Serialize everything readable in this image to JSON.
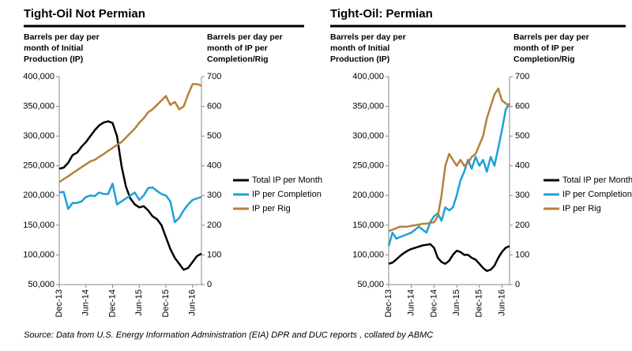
{
  "chart_data": [
    {
      "type": "line",
      "title": "Tight-Oil Not Permian",
      "y_label": [
        "Barrels per day per",
        "month of Initial",
        "Production (IP)"
      ],
      "y2_label": [
        "Barrels per day per",
        "month of IP per",
        "Completion/Rig"
      ],
      "categories": [
        "Dec-13",
        null,
        null,
        null,
        null,
        null,
        "Jun-14",
        null,
        null,
        null,
        null,
        null,
        "Dec-14",
        null,
        null,
        null,
        null,
        null,
        "Jun-15",
        null,
        null,
        null,
        null,
        null,
        "Dec-15",
        null,
        null,
        null,
        null,
        null,
        "Jun-16",
        null,
        null
      ],
      "ylim": [
        50000,
        400000
      ],
      "yticks": [
        {
          "value": 50000,
          "label": "50,000"
        },
        {
          "value": 100000,
          "label": "100,000"
        },
        {
          "value": 150000,
          "label": "150,000"
        },
        {
          "value": 200000,
          "label": "200,000"
        },
        {
          "value": 250000,
          "label": "250,000"
        },
        {
          "value": 300000,
          "label": "300,000"
        },
        {
          "value": 350000,
          "label": "350,000"
        },
        {
          "value": 400000,
          "label": "400,000"
        }
      ],
      "y2lim": [
        0,
        700
      ],
      "y2ticks": [
        0,
        100,
        200,
        300,
        400,
        500,
        600,
        700
      ],
      "series": [
        {
          "name": "Total IP per Month",
          "color": "#000000",
          "values": [
            245000,
            247000,
            255000,
            268000,
            272000,
            282000,
            290000,
            300000,
            310000,
            318000,
            323000,
            325000,
            322000,
            300000,
            250000,
            215000,
            195000,
            185000,
            180000,
            182000,
            175000,
            165000,
            160000,
            150000,
            130000,
            110000,
            95000,
            85000,
            75000,
            78000,
            88000,
            98000,
            102000
          ]
        },
        {
          "name": "IP per Completion",
          "color": "#1fa0d8",
          "axis": "y2",
          "values": [
            310,
            312,
            255,
            275,
            275,
            280,
            295,
            300,
            298,
            310,
            305,
            305,
            340,
            270,
            280,
            290,
            300,
            310,
            285,
            300,
            325,
            327,
            315,
            305,
            300,
            280,
            210,
            225,
            250,
            270,
            285,
            290,
            295
          ]
        },
        {
          "name": "IP per Rig",
          "color": "#b5813a",
          "axis": "y2",
          "values": [
            345,
            355,
            365,
            375,
            385,
            395,
            405,
            415,
            420,
            430,
            440,
            450,
            460,
            470,
            480,
            495,
            510,
            525,
            545,
            560,
            580,
            590,
            605,
            620,
            635,
            605,
            615,
            590,
            600,
            640,
            675,
            675,
            670
          ]
        }
      ]
    },
    {
      "type": "line",
      "title": "Tight-Oil: Permian",
      "y_label": [
        "Barrels per day per",
        "month of Initial",
        "Production (IP)"
      ],
      "y2_label": [
        "Barrels per day per",
        "month of IP per",
        "Completion/Rig"
      ],
      "categories": [
        "Dec-13",
        null,
        null,
        null,
        null,
        null,
        "Jun-14",
        null,
        null,
        null,
        null,
        null,
        "Dec-14",
        null,
        null,
        null,
        null,
        null,
        "Jun-15",
        null,
        null,
        null,
        null,
        null,
        "Dec-15",
        null,
        null,
        null,
        null,
        null,
        "Jun-16",
        null,
        null
      ],
      "ylim": [
        50000,
        400000
      ],
      "yticks": [
        {
          "value": 50000,
          "label": "50,000"
        },
        {
          "value": 100000,
          "label": "100,000"
        },
        {
          "value": 150000,
          "label": "150,000"
        },
        {
          "value": 200000,
          "label": "200,000"
        },
        {
          "value": 250000,
          "label": "250,000"
        },
        {
          "value": 300000,
          "label": "300,000"
        },
        {
          "value": 350000,
          "label": "350,000"
        },
        {
          "value": 400000,
          "label": "400,000"
        }
      ],
      "y2lim": [
        0,
        700
      ],
      "y2ticks": [
        0,
        100,
        200,
        300,
        400,
        500,
        600,
        700
      ],
      "series": [
        {
          "name": "Total IP per Month",
          "color": "#000000",
          "values": [
            85000,
            87000,
            92000,
            98000,
            103000,
            107000,
            110000,
            112000,
            114000,
            116000,
            117000,
            118000,
            112000,
            95000,
            88000,
            85000,
            90000,
            100000,
            107000,
            105000,
            100000,
            100000,
            95000,
            92000,
            85000,
            78000,
            73000,
            75000,
            82000,
            95000,
            105000,
            112000,
            115000
          ]
        },
        {
          "name": "IP per Completion",
          "color": "#1fa0d8",
          "axis": "y2",
          "values": [
            130,
            175,
            155,
            160,
            165,
            170,
            175,
            185,
            195,
            185,
            175,
            210,
            230,
            240,
            215,
            260,
            250,
            260,
            300,
            350,
            380,
            420,
            390,
            430,
            400,
            420,
            380,
            430,
            400,
            460,
            520,
            590,
            610
          ]
        },
        {
          "name": "IP per Rig",
          "color": "#b5813a",
          "axis": "y2",
          "values": [
            180,
            185,
            190,
            195,
            195,
            195,
            198,
            200,
            202,
            205,
            205,
            208,
            210,
            230,
            300,
            400,
            440,
            420,
            400,
            420,
            400,
            410,
            430,
            440,
            470,
            500,
            560,
            600,
            640,
            660,
            620,
            610,
            600
          ]
        }
      ]
    }
  ],
  "source": "Source: Data from U.S. Energy Information Administration (EIA) DPR and DUC reports , collated by ABMC"
}
